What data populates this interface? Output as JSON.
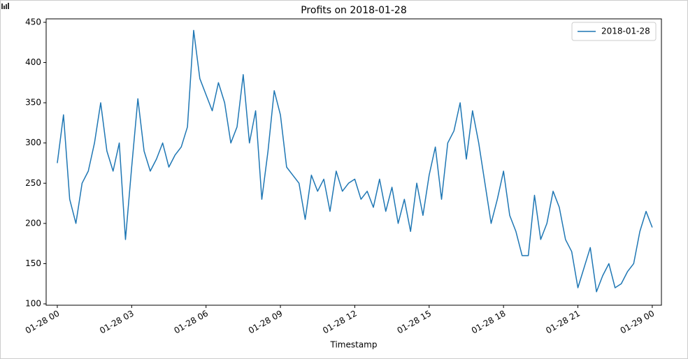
{
  "chart_data": {
    "type": "line",
    "title": "Profits on 2018-01-28",
    "x_label": "Timestamp",
    "x": [
      0,
      0.25,
      0.5,
      0.75,
      1,
      1.25,
      1.5,
      1.75,
      2,
      2.25,
      2.5,
      2.75,
      3,
      3.25,
      3.5,
      3.75,
      4,
      4.25,
      4.5,
      4.75,
      5,
      5.25,
      5.5,
      5.75,
      6,
      6.25,
      6.5,
      6.75,
      7,
      7.25,
      7.5,
      7.75,
      8,
      8.25,
      8.5,
      8.75,
      9,
      9.25,
      9.5,
      9.75,
      10,
      10.25,
      10.5,
      10.75,
      11,
      11.25,
      11.5,
      11.75,
      12,
      12.25,
      12.5,
      12.75,
      13,
      13.25,
      13.5,
      13.75,
      14,
      14.25,
      14.5,
      14.75,
      15,
      15.25,
      15.5,
      15.75,
      16,
      16.25,
      16.5,
      16.75,
      17,
      17.25,
      17.5,
      17.75,
      18,
      18.25,
      18.5,
      18.75,
      19,
      19.25,
      19.5,
      19.75,
      20,
      20.25,
      20.5,
      20.75,
      21,
      21.25,
      21.5,
      21.75,
      22,
      22.25,
      22.5,
      22.75,
      23,
      23.25,
      23.5,
      23.75,
      24
    ],
    "series": [
      {
        "name": "2018-01-28",
        "color": "#1f77b4",
        "values": [
          275,
          335,
          230,
          200,
          250,
          265,
          300,
          350,
          290,
          265,
          300,
          180,
          270,
          355,
          290,
          265,
          280,
          300,
          270,
          285,
          295,
          320,
          440,
          380,
          360,
          340,
          375,
          350,
          300,
          320,
          385,
          300,
          340,
          230,
          290,
          365,
          335,
          270,
          260,
          250,
          205,
          260,
          240,
          255,
          215,
          265,
          240,
          250,
          255,
          230,
          240,
          220,
          255,
          215,
          245,
          200,
          230,
          190,
          250,
          210,
          260,
          295,
          230,
          300,
          315,
          350,
          280,
          340,
          300,
          250,
          200,
          230,
          265,
          210,
          190,
          160,
          160,
          235,
          180,
          200,
          240,
          220,
          180,
          165,
          120,
          145,
          170,
          115,
          135,
          150,
          120,
          125,
          140,
          150,
          190,
          215,
          195
        ]
      }
    ],
    "xlim": [
      -0.45,
      24.37
    ],
    "ylim": [
      98.3,
      454.3
    ],
    "xticks": [
      {
        "value": 0,
        "label": "01-28 00"
      },
      {
        "value": 3,
        "label": "01-28 03"
      },
      {
        "value": 6,
        "label": "01-28 06"
      },
      {
        "value": 9,
        "label": "01-28 09"
      },
      {
        "value": 12,
        "label": "01-28 12"
      },
      {
        "value": 15,
        "label": "01-28 15"
      },
      {
        "value": 18,
        "label": "01-28 18"
      },
      {
        "value": 21,
        "label": "01-28 21"
      },
      {
        "value": 24,
        "label": "01-29 00"
      }
    ],
    "yticks": [
      100,
      150,
      200,
      250,
      300,
      350,
      400,
      450
    ],
    "legend": "upper right"
  }
}
